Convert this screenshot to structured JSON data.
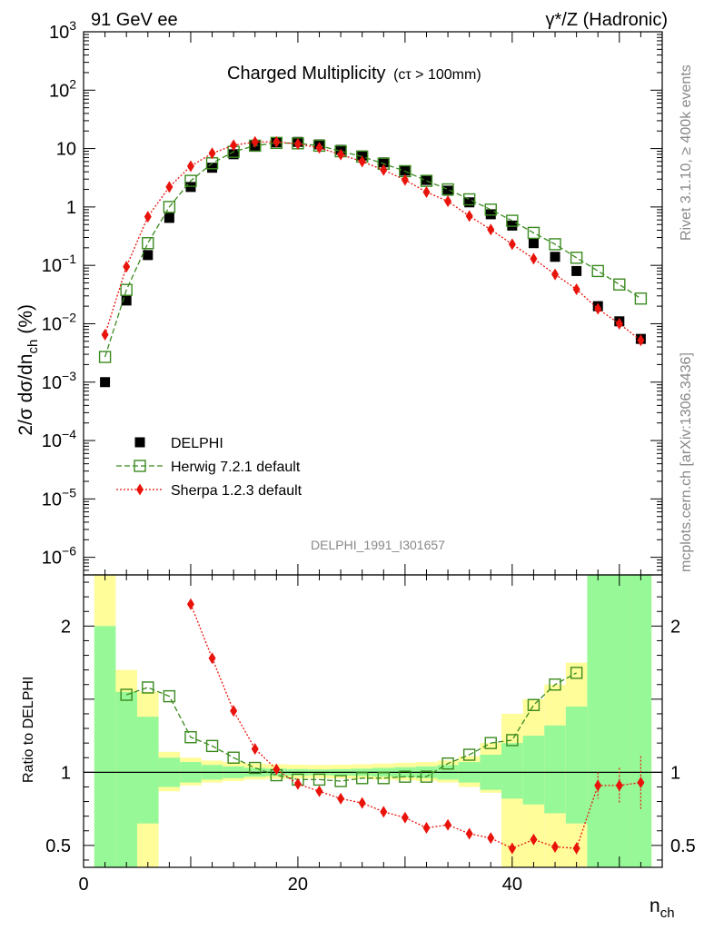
{
  "header": {
    "left": "91 GeV ee",
    "right": "γ*/Z (Hadronic)"
  },
  "side_labels": {
    "rivet": "Rivet 3.1.10, ≥ 400k events",
    "mcplots": "mcplots.cern.ch [arXiv:1306.3436]"
  },
  "chart_data": [
    {
      "type": "scatter",
      "title": "Charged Multiplicity",
      "title_suffix": "(cτ > 100mm)",
      "ylabel": "2/σ dσ/dn",
      "ylabel_sub": "ch",
      "ylabel_unit": "(%)",
      "yscale": "log",
      "ylim": [
        5e-07,
        1000
      ],
      "xlim": [
        0,
        54
      ],
      "yticks": [
        {
          "label": "10",
          "exp": "3",
          "value": 1000
        },
        {
          "label": "10",
          "exp": "2",
          "value": 100
        },
        {
          "label": "10",
          "exp": "",
          "value": 10
        },
        {
          "label": "1",
          "exp": "",
          "value": 1
        },
        {
          "label": "10",
          "exp": "−1",
          "value": 0.1
        },
        {
          "label": "10",
          "exp": "−2",
          "value": 0.01
        },
        {
          "label": "10",
          "exp": "−3",
          "value": 0.001
        },
        {
          "label": "10",
          "exp": "−4",
          "value": 0.0001
        },
        {
          "label": "10",
          "exp": "−5",
          "value": 1e-05
        },
        {
          "label": "10",
          "exp": "−6",
          "value": 1e-06
        }
      ],
      "analysis_label": "DELPHI_1991_I301657",
      "legend_position": "lower-left",
      "series": [
        {
          "name": "DELPHI",
          "color": "#000000",
          "marker": "filled-square",
          "x": [
            2,
            4,
            6,
            8,
            10,
            12,
            14,
            16,
            18,
            20,
            22,
            24,
            26,
            28,
            30,
            32,
            34,
            36,
            38,
            40,
            42,
            44,
            46,
            48,
            50,
            52
          ],
          "y": [
            0.001,
            0.025,
            0.15,
            0.65,
            2.2,
            4.7,
            8.0,
            11.2,
            12.8,
            13.0,
            11.8,
            9.5,
            7.6,
            5.8,
            4.2,
            2.9,
            1.9,
            1.2,
            0.75,
            0.48,
            0.24,
            0.14,
            0.08,
            0.02,
            0.011,
            0.0055
          ]
        },
        {
          "name": "Herwig 7.2.1 default",
          "color": "#3a8a1e",
          "marker": "open-square",
          "line": "dashed",
          "x": [
            2,
            4,
            6,
            8,
            10,
            12,
            14,
            16,
            18,
            20,
            22,
            24,
            26,
            28,
            30,
            32,
            34,
            36,
            38,
            40,
            42,
            44,
            46,
            48,
            50,
            52
          ],
          "y": [
            0.0027,
            0.038,
            0.24,
            1.0,
            2.8,
            5.6,
            8.8,
            11.2,
            12.5,
            12.3,
            11.2,
            9.0,
            7.3,
            5.5,
            4.1,
            2.8,
            2.0,
            1.35,
            0.9,
            0.58,
            0.36,
            0.23,
            0.135,
            0.08,
            0.047,
            0.027
          ]
        },
        {
          "name": "Sherpa 1.2.3 default",
          "color": "#e8140c",
          "marker": "diamond",
          "line": "dotted",
          "x": [
            2,
            4,
            6,
            8,
            10,
            12,
            14,
            16,
            18,
            20,
            22,
            24,
            26,
            28,
            30,
            32,
            34,
            36,
            38,
            40,
            42,
            44,
            46,
            48,
            50,
            52
          ],
          "y": [
            0.0065,
            0.095,
            0.68,
            2.2,
            5.0,
            8.3,
            11.4,
            13.0,
            13.0,
            12.0,
            10.3,
            7.9,
            6.0,
            4.3,
            2.9,
            1.8,
            1.25,
            0.7,
            0.41,
            0.23,
            0.13,
            0.07,
            0.039,
            0.018,
            0.01,
            0.0052
          ]
        }
      ]
    },
    {
      "type": "scatter",
      "ylabel": "Ratio to DELPHI",
      "xlabel": "n",
      "xlabel_sub": "ch",
      "xlim": [
        0,
        54
      ],
      "ylim": [
        0.35,
        2.35
      ],
      "xticks": [
        0,
        20,
        40
      ],
      "yticks": [
        0.5,
        1,
        2
      ],
      "yticks_right": [
        0.5,
        1,
        2
      ],
      "bands": {
        "x_edges": [
          1,
          3,
          5,
          7,
          9,
          11,
          13,
          15,
          17,
          19,
          21,
          23,
          25,
          27,
          29,
          31,
          33,
          35,
          37,
          39,
          41,
          43,
          45,
          47,
          49,
          51,
          53
        ],
        "stat_lo": [
          0.35,
          0.35,
          0.65,
          0.9,
          0.93,
          0.95,
          0.96,
          0.97,
          0.975,
          0.978,
          0.98,
          0.978,
          0.975,
          0.97,
          0.965,
          0.96,
          0.95,
          0.93,
          0.88,
          0.82,
          0.78,
          0.72,
          0.65,
          0.35,
          0.35,
          0.35
        ],
        "stat_hi": [
          2.0,
          1.55,
          1.38,
          1.1,
          1.07,
          1.05,
          1.04,
          1.03,
          1.025,
          1.022,
          1.02,
          1.022,
          1.025,
          1.03,
          1.035,
          1.04,
          1.05,
          1.07,
          1.12,
          1.2,
          1.25,
          1.32,
          1.45,
          2.35,
          2.35,
          2.35
        ],
        "tot_lo": [
          0.35,
          0.35,
          0.35,
          0.87,
          0.91,
          0.93,
          0.94,
          0.95,
          0.955,
          0.958,
          0.96,
          0.958,
          0.955,
          0.95,
          0.945,
          0.94,
          0.93,
          0.9,
          0.86,
          0.35,
          0.35,
          0.35,
          0.35,
          0.35,
          0.35,
          0.35
        ],
        "tot_hi": [
          2.35,
          1.7,
          1.55,
          1.14,
          1.1,
          1.08,
          1.07,
          1.06,
          1.055,
          1.052,
          1.05,
          1.052,
          1.055,
          1.06,
          1.065,
          1.07,
          1.08,
          1.11,
          1.2,
          1.4,
          1.5,
          1.6,
          1.75,
          2.35,
          2.35,
          2.35
        ],
        "stat_color": "#97f897",
        "tot_color": "#fffc9a"
      },
      "series": [
        {
          "name": "Herwig 7.2.1 default",
          "color": "#3a8a1e",
          "marker": "open-square",
          "line": "dashed",
          "x": [
            4,
            6,
            8,
            10,
            12,
            14,
            16,
            18,
            20,
            22,
            24,
            26,
            28,
            30,
            32,
            34,
            36,
            38,
            40,
            42,
            44,
            46
          ],
          "y": [
            1.53,
            1.58,
            1.52,
            1.24,
            1.18,
            1.1,
            1.03,
            0.98,
            0.95,
            0.95,
            0.94,
            0.96,
            0.96,
            0.97,
            0.97,
            1.06,
            1.12,
            1.2,
            1.22,
            1.46,
            1.6,
            1.68
          ]
        },
        {
          "name": "Sherpa 1.2.3 default",
          "color": "#e8140c",
          "marker": "diamond",
          "line": "dotted",
          "x": [
            10,
            12,
            14,
            16,
            18,
            20,
            22,
            24,
            26,
            28,
            30,
            32,
            34,
            36,
            38,
            40,
            42,
            44,
            46,
            48,
            50,
            52
          ],
          "y": [
            2.15,
            1.78,
            1.42,
            1.16,
            1.02,
            0.92,
            0.87,
            0.82,
            0.79,
            0.73,
            0.69,
            0.62,
            0.64,
            0.58,
            0.55,
            0.48,
            0.54,
            0.49,
            0.48,
            0.91,
            0.91,
            0.93
          ],
          "yerr": [
            0,
            0,
            0,
            0,
            0,
            0,
            0,
            0,
            0,
            0,
            0,
            0,
            0,
            0,
            0,
            0.025,
            0.03,
            0.035,
            0.04,
            0.09,
            0.12,
            0.18
          ]
        }
      ]
    }
  ]
}
